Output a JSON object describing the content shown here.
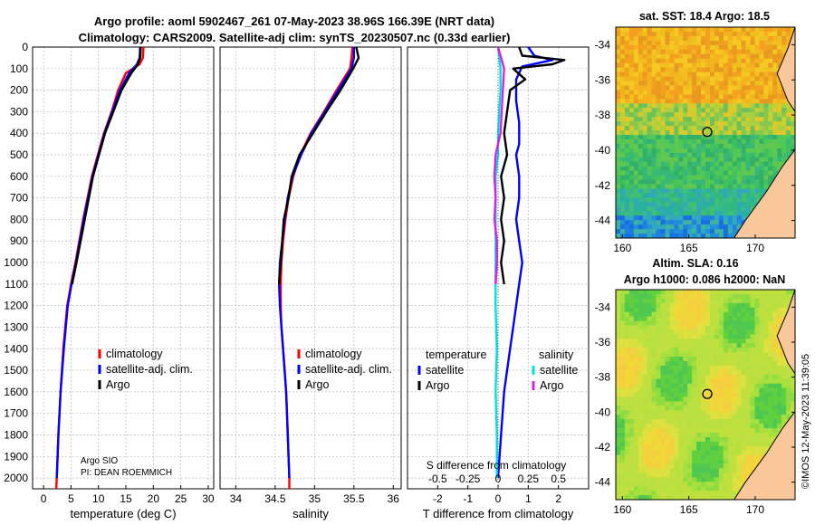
{
  "header": {
    "title_line1": "Argo profile: aoml 5902467_261 07-May-2023 38.96S 166.39E (NRT data)",
    "title_line2": "Climatology: CARS2009. Satellite-adj clim: synTS_20230507.nc (0.33d earlier)"
  },
  "footer": {
    "institution": "Argo SIO",
    "pi": "PI: DEAN ROEMMICH",
    "imos_stamp": "©IMOS 12-May-2023 11:39:05"
  },
  "colors": {
    "climatology": "#ff0000",
    "satellite": "#0000ff",
    "argo": "#000000",
    "salinity_satellite": "#00e0e0",
    "salinity_argo": "#e020e0",
    "land": "#f9c79a"
  },
  "chart_data": [
    {
      "type": "line",
      "name": "temperature",
      "xlabel": "temperature (deg C)",
      "xlim": [
        -2,
        31
      ],
      "ylim": [
        0,
        2050
      ],
      "y_reversed": true,
      "xticks": [
        0,
        5,
        10,
        15,
        20,
        25,
        30
      ],
      "yticks": [
        0,
        100,
        200,
        300,
        400,
        500,
        600,
        700,
        800,
        900,
        1000,
        1100,
        1200,
        1300,
        1400,
        1500,
        1600,
        1700,
        1800,
        1900,
        2000
      ],
      "legend": [
        "climatology",
        "satellite-adj. clim.",
        "Argo"
      ],
      "series": [
        {
          "name": "climatology",
          "depth": [
            0,
            50,
            80,
            120,
            200,
            300,
            400,
            500,
            600,
            800,
            1000,
            1100,
            1200,
            1400,
            1600,
            1800,
            2000,
            2050
          ],
          "values": [
            18.2,
            18.1,
            17.5,
            15.0,
            13.6,
            12.4,
            11.0,
            9.9,
            8.8,
            7.2,
            5.8,
            5.0,
            4.3,
            3.6,
            3.1,
            2.7,
            2.4,
            2.3
          ]
        },
        {
          "name": "satellite-adj. clim.",
          "depth": [
            0,
            50,
            80,
            120,
            200,
            300,
            400,
            500,
            600,
            800,
            1000,
            1100,
            1200,
            1400,
            1600,
            1800,
            2000
          ],
          "values": [
            17.6,
            17.5,
            17.0,
            15.6,
            13.9,
            12.5,
            11.1,
            10.0,
            8.9,
            7.3,
            5.9,
            5.1,
            4.4,
            3.7,
            3.1,
            2.7,
            2.4
          ]
        },
        {
          "name": "Argo",
          "depth": [
            0,
            50,
            80,
            120,
            200,
            300,
            400,
            500,
            600,
            800,
            1000,
            1100
          ],
          "values": [
            17.7,
            17.6,
            17.2,
            16.0,
            14.2,
            12.7,
            11.2,
            10.1,
            9.0,
            7.5,
            6.0,
            5.2
          ]
        }
      ]
    },
    {
      "type": "line",
      "name": "salinity",
      "xlabel": "salinity",
      "xlim": [
        33.8,
        36.1
      ],
      "ylim": [
        0,
        2050
      ],
      "y_reversed": true,
      "xticks": [
        34,
        34.5,
        35,
        35.5,
        36
      ],
      "legend": [
        "climatology",
        "satellite-adj. clim.",
        "Argo"
      ],
      "series": [
        {
          "name": "climatology",
          "depth": [
            0,
            50,
            100,
            200,
            300,
            400,
            500,
            600,
            700,
            800,
            900,
            1000,
            1100,
            1200,
            1300,
            1400,
            1500,
            1600,
            1800,
            2000,
            2050
          ],
          "values": [
            35.48,
            35.47,
            35.45,
            35.28,
            35.12,
            34.95,
            34.82,
            34.73,
            34.67,
            34.63,
            34.6,
            34.58,
            34.57,
            34.57,
            34.58,
            34.6,
            34.62,
            34.64,
            34.66,
            34.68,
            34.68
          ]
        },
        {
          "name": "satellite-adj. clim.",
          "depth": [
            0,
            50,
            100,
            200,
            300,
            400,
            500,
            600,
            700,
            800,
            900,
            1000,
            1100,
            1200,
            1300,
            1400,
            1500,
            1600,
            1800,
            2000
          ],
          "values": [
            35.5,
            35.5,
            35.47,
            35.3,
            35.13,
            34.96,
            34.83,
            34.72,
            34.66,
            34.62,
            34.59,
            34.56,
            34.55,
            34.56,
            34.58,
            34.6,
            34.62,
            34.64,
            34.66,
            34.68
          ]
        },
        {
          "name": "Argo",
          "depth": [
            0,
            50,
            100,
            200,
            300,
            400,
            500,
            600,
            700,
            800,
            900,
            1000,
            1100
          ],
          "values": [
            35.53,
            35.56,
            35.49,
            35.33,
            35.15,
            34.98,
            34.81,
            34.71,
            34.67,
            34.61,
            34.59,
            34.57,
            34.55
          ]
        }
      ]
    },
    {
      "type": "line",
      "name": "difference from climatology",
      "xlabel": "T difference from climatology",
      "xlabel2": "S difference from climatology",
      "xlim": [
        -3,
        3
      ],
      "ylim": [
        0,
        2050
      ],
      "y_reversed": true,
      "xticks": [
        -2,
        -1,
        0,
        1,
        2
      ],
      "xticks2_labels": [
        "-0.5",
        "-0.25",
        "0",
        "0.25",
        "0.5"
      ],
      "legend_title_t": "temperature",
      "legend_title_s": "salinity",
      "legend_t": [
        "satellite",
        "Argo"
      ],
      "legend_s": [
        "satellite",
        "Argo"
      ],
      "series": [
        {
          "name": "T satellite",
          "depth": [
            0,
            40,
            60,
            90,
            150,
            250,
            350,
            450,
            500,
            600,
            700,
            800,
            900,
            1000,
            1100,
            1200,
            1300,
            1400,
            1600,
            1800,
            2000
          ],
          "values": [
            1.0,
            1.2,
            1.8,
            0.8,
            0.6,
            0.6,
            0.7,
            0.7,
            0.6,
            0.7,
            0.7,
            0.6,
            0.7,
            0.8,
            0.7,
            0.6,
            0.5,
            0.4,
            0.2,
            0.1,
            0.0
          ]
        },
        {
          "name": "T Argo",
          "depth": [
            0,
            40,
            60,
            80,
            100,
            150,
            200,
            300,
            400,
            500,
            600,
            700,
            800,
            900,
            1000,
            1100
          ],
          "values": [
            0.7,
            0.8,
            2.2,
            1.8,
            0.5,
            0.9,
            0.4,
            0.3,
            0.2,
            0.3,
            0.1,
            0.2,
            0.1,
            0.2,
            0.1,
            0.2
          ]
        },
        {
          "name": "S satellite",
          "depth": [
            0,
            100,
            200,
            300,
            400,
            500,
            600,
            800,
            1000,
            1200,
            1400,
            1600,
            1800,
            2000
          ],
          "values": [
            0.0,
            0.02,
            0.02,
            0.01,
            0.0,
            0.0,
            -0.02,
            -0.02,
            -0.02,
            -0.02,
            -0.01,
            -0.02,
            -0.01,
            -0.01
          ]
        },
        {
          "name": "S Argo",
          "depth": [
            0,
            100,
            200,
            300,
            400,
            500,
            600,
            700,
            800,
            900,
            1000,
            1100
          ],
          "values": [
            0.0,
            0.05,
            0.04,
            0.03,
            0.02,
            -0.02,
            -0.03,
            -0.02,
            -0.03,
            -0.01,
            -0.01,
            -0.02
          ]
        }
      ]
    },
    {
      "type": "heatmap",
      "name": "sst map",
      "title": "sat. SST: 18.4 Argo: 18.5",
      "xticks": [
        160,
        165,
        170
      ],
      "yticks": [
        -34,
        -36,
        -38,
        -40,
        -42,
        -44
      ],
      "xlim": [
        159.5,
        173
      ],
      "ylim": [
        -45,
        -33
      ],
      "marker": {
        "lon": 166.39,
        "lat": -38.96
      }
    },
    {
      "type": "heatmap",
      "name": "sla map",
      "title_line1": "Altim. SLA: 0.16",
      "title_line2": "Argo h1000: 0.086 h2000: NaN",
      "xticks": [
        160,
        165,
        170
      ],
      "yticks": [
        -34,
        -36,
        -38,
        -40,
        -42,
        -44
      ],
      "xlim": [
        159.5,
        173
      ],
      "ylim": [
        -45,
        -33
      ],
      "marker": {
        "lon": 166.39,
        "lat": -38.96
      }
    }
  ]
}
